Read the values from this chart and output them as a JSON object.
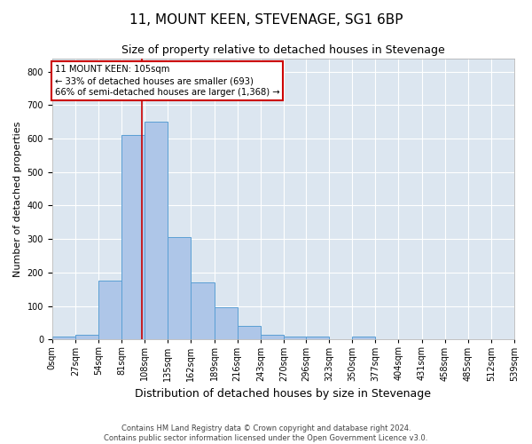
{
  "title": "11, MOUNT KEEN, STEVENAGE, SG1 6BP",
  "subtitle": "Size of property relative to detached houses in Stevenage",
  "xlabel": "Distribution of detached houses by size in Stevenage",
  "ylabel": "Number of detached properties",
  "bin_labels": [
    "0sqm",
    "27sqm",
    "54sqm",
    "81sqm",
    "108sqm",
    "135sqm",
    "162sqm",
    "189sqm",
    "216sqm",
    "243sqm",
    "270sqm",
    "296sqm",
    "323sqm",
    "350sqm",
    "377sqm",
    "404sqm",
    "431sqm",
    "458sqm",
    "485sqm",
    "512sqm",
    "539sqm"
  ],
  "bar_values": [
    8,
    13,
    175,
    612,
    650,
    305,
    170,
    97,
    40,
    15,
    10,
    8,
    0,
    8,
    0,
    0,
    0,
    0,
    0,
    0
  ],
  "bin_edges": [
    0,
    27,
    54,
    81,
    108,
    135,
    162,
    189,
    216,
    243,
    270,
    296,
    323,
    350,
    377,
    404,
    431,
    458,
    485,
    512,
    539
  ],
  "bar_color": "#aec6e8",
  "bar_edge_color": "#5a9fd4",
  "vline_x": 105,
  "vline_color": "#cc0000",
  "annotation_text": "11 MOUNT KEEN: 105sqm\n← 33% of detached houses are smaller (693)\n66% of semi-detached houses are larger (1,368) →",
  "annotation_box_color": "#cc0000",
  "ylim": [
    0,
    840
  ],
  "yticks": [
    0,
    100,
    200,
    300,
    400,
    500,
    600,
    700,
    800
  ],
  "xlim": [
    0,
    539
  ],
  "background_color": "#dce6f0",
  "grid_color": "#ffffff",
  "title_fontsize": 11,
  "subtitle_fontsize": 9,
  "xlabel_fontsize": 9,
  "ylabel_fontsize": 8,
  "tick_fontsize": 7,
  "footnote": "Contains HM Land Registry data © Crown copyright and database right 2024.\nContains public sector information licensed under the Open Government Licence v3.0.",
  "footnote_fontsize": 6
}
